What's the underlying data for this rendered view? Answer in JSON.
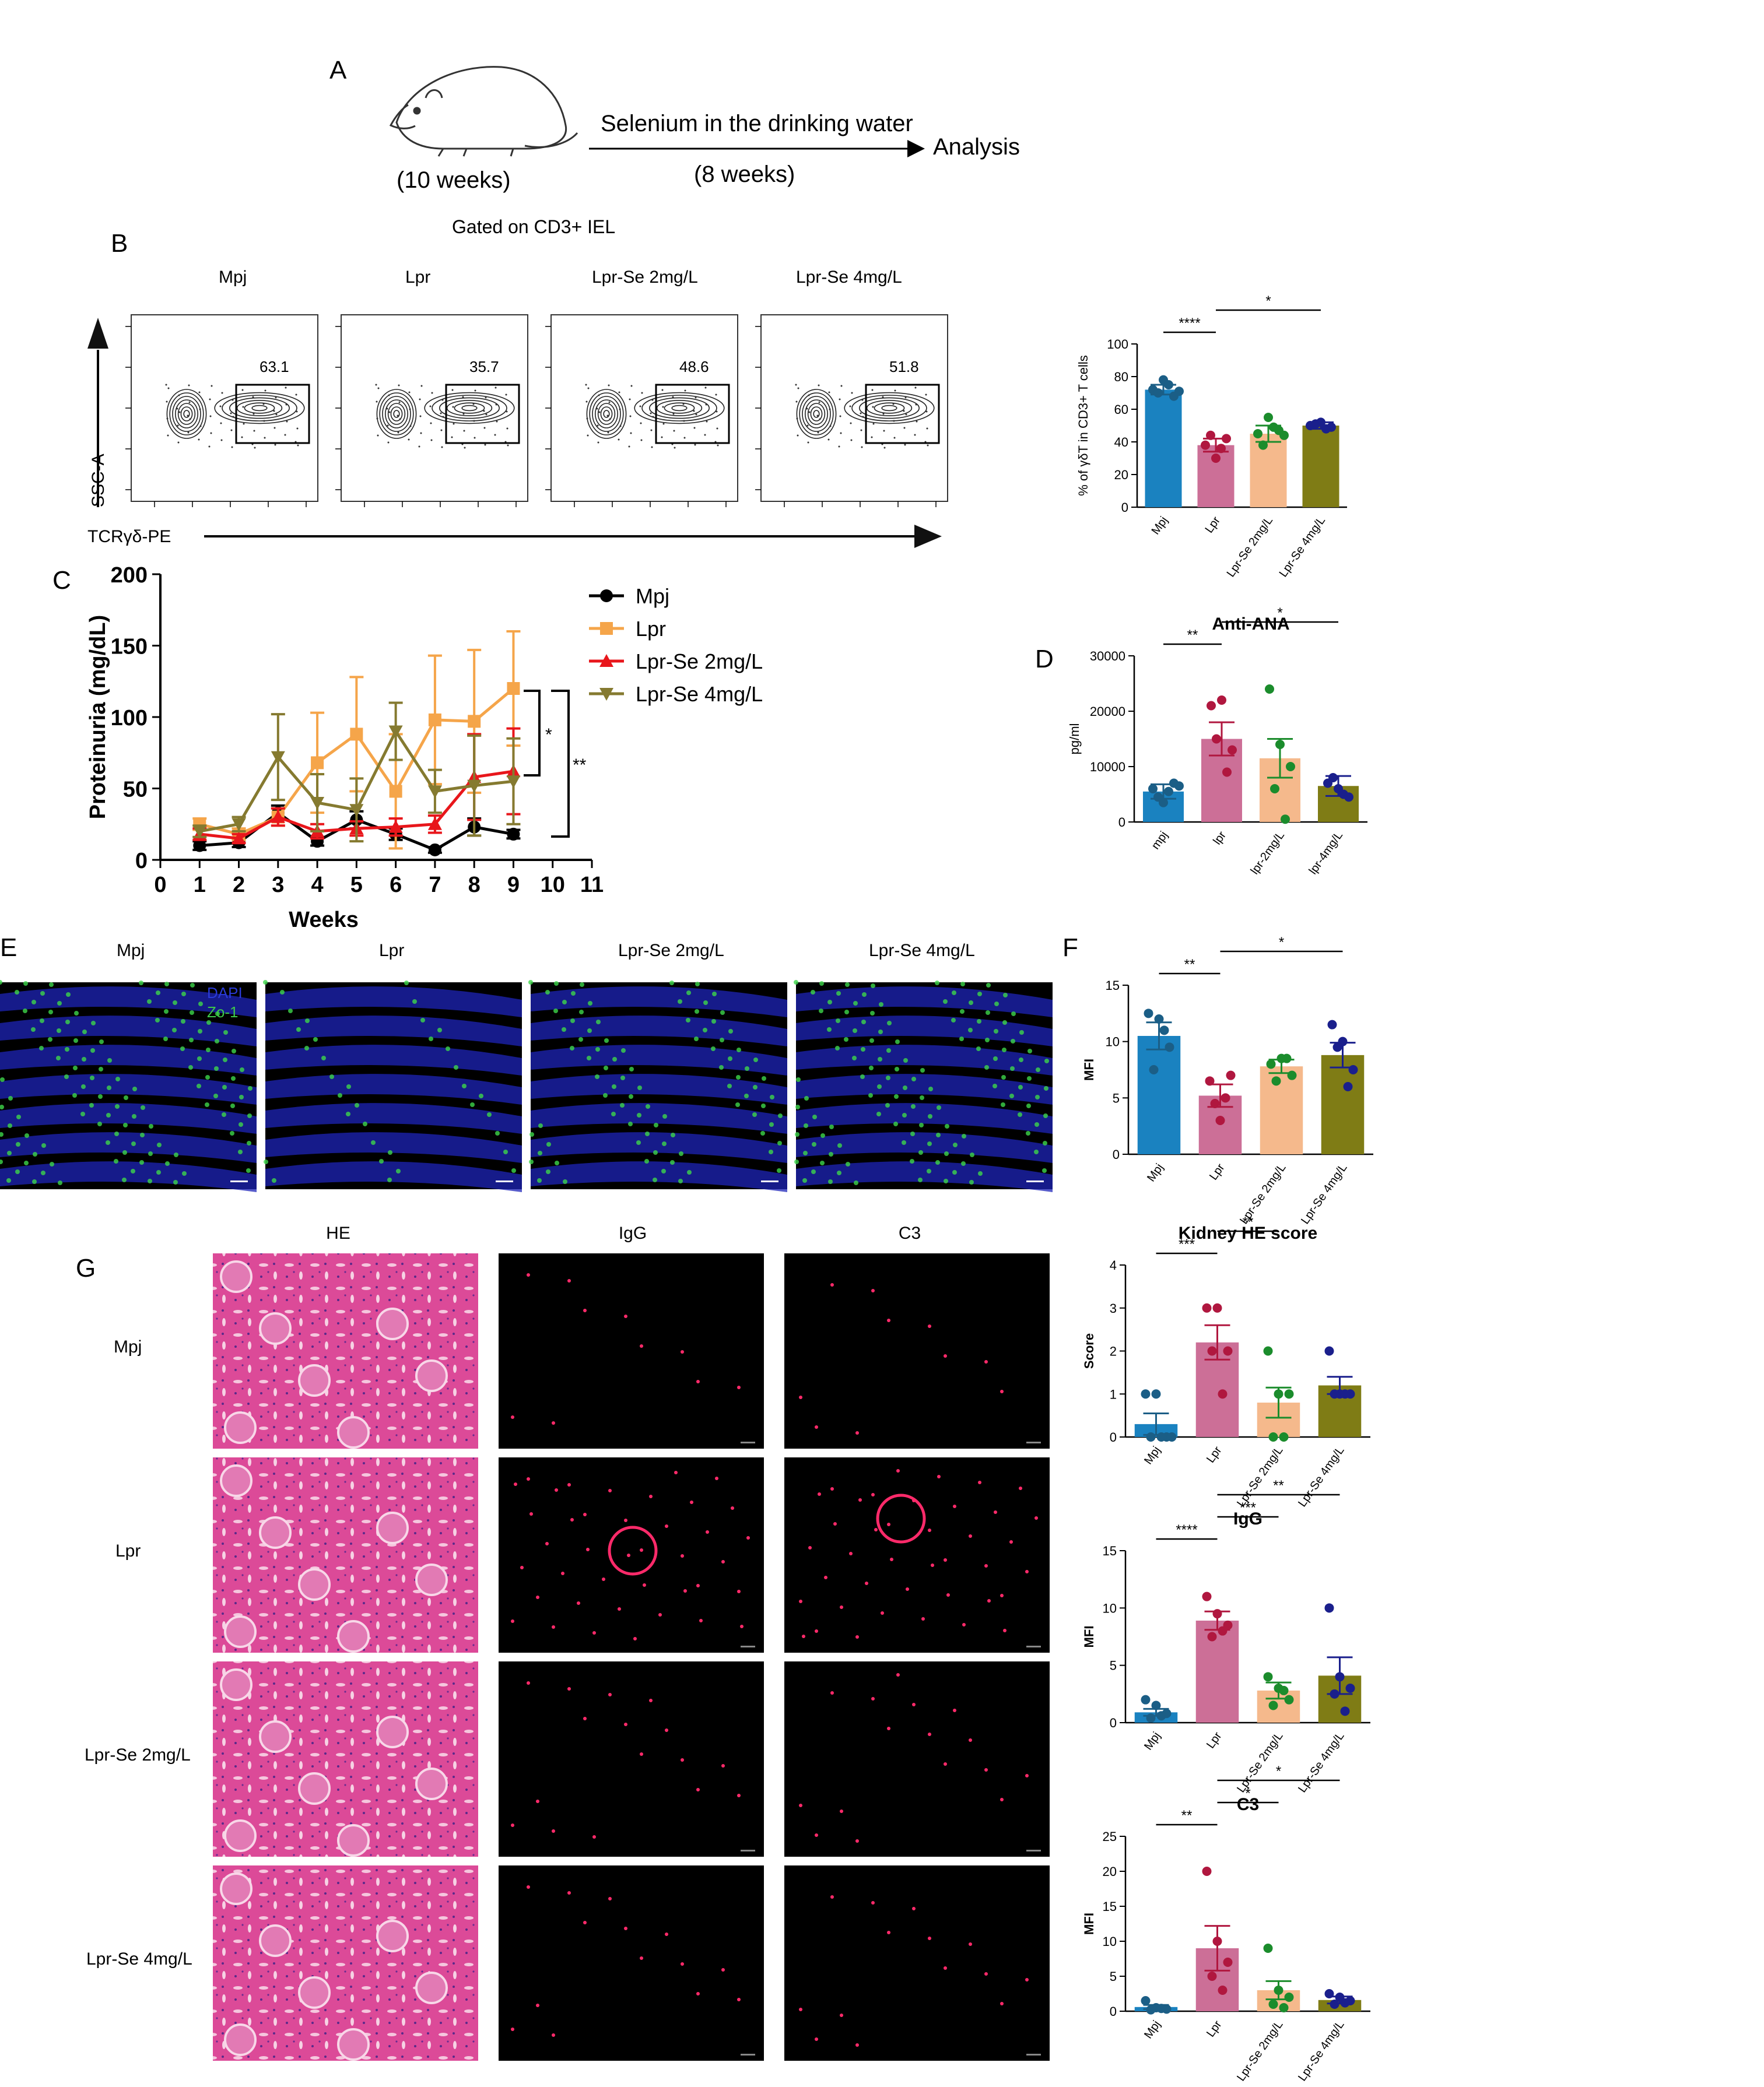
{
  "panel_letters": {
    "A": "A",
    "B": "B",
    "C": "C",
    "D": "D",
    "E": "E",
    "F": "F",
    "G": "G"
  },
  "panel_a": {
    "treatment": "Selenium in the drinking water",
    "duration": "(8 weeks)",
    "age": "(10 weeks)",
    "endpoint": "Analysis"
  },
  "panel_b": {
    "gate_title": "Gated on CD3+ IEL",
    "y_axis_label": "SSC-A",
    "x_axis_label": "TCRγδ-PE",
    "plots": [
      {
        "group": "Mpj",
        "gate_value": "63.1"
      },
      {
        "group": "Lpr",
        "gate_value": "35.7"
      },
      {
        "group": "Lpr-Se 2mg/L",
        "gate_value": "48.6"
      },
      {
        "group": "Lpr-Se 4mg/L",
        "gate_value": "51.8"
      }
    ]
  },
  "groups_cap": [
    "Mpj",
    "Lpr",
    "Lpr-Se 2mg/L",
    "Lpr-Se 4mg/L"
  ],
  "groups_lower": [
    "mpj",
    "lpr",
    "lpr-2mg/L",
    "lpr-4mg/L"
  ],
  "colors": {
    "mpj": "#1a82c0",
    "lpr": "#cc6f97",
    "se2": "#f5b98c",
    "se4": "#7f7c15",
    "dot_mpj": "#1b5e86",
    "dot_lpr": "#b0173f",
    "dot_se2": "#1b8c2c",
    "dot_se4": "#1a1f8c"
  },
  "chart_data": [
    {
      "type": "bar",
      "id": "gd_t",
      "ylabel": "% of γδT in CD3+ T cells",
      "ylim": [
        0,
        100
      ],
      "ticks": [
        0,
        20,
        40,
        60,
        80,
        100
      ],
      "categories": [
        "Mpj",
        "Lpr",
        "Lpr-Se 2mg/L",
        "Lpr-Se 4mg/L"
      ],
      "values": [
        72,
        38,
        45,
        50
      ],
      "sem": [
        3,
        4,
        5,
        2
      ],
      "points": [
        [
          72,
          78,
          68,
          70,
          75,
          71
        ],
        [
          38,
          30,
          42,
          44,
          36
        ],
        [
          45,
          55,
          47,
          38,
          49,
          44
        ],
        [
          50,
          52,
          49,
          51,
          48
        ]
      ],
      "significance": [
        {
          "from": 0,
          "to": 1,
          "label": "****"
        },
        {
          "from": 1,
          "to": 3,
          "label": "*"
        }
      ]
    },
    {
      "type": "line",
      "id": "proteinuria",
      "xlabel": "Weeks",
      "ylabel": "Proteinuria (mg/dL)",
      "x_ticks": [
        0,
        1,
        2,
        3,
        4,
        5,
        6,
        7,
        8,
        9,
        10,
        11
      ],
      "ylim": [
        0,
        200
      ],
      "y_ticks": [
        0,
        50,
        100,
        150,
        200
      ],
      "series": [
        {
          "name": "Mpj",
          "x": [
            1,
            2,
            3,
            4,
            5,
            6,
            7,
            8,
            9
          ],
          "y": [
            10,
            12,
            33,
            13,
            28,
            18,
            7,
            23,
            18
          ],
          "err": [
            3,
            3,
            5,
            3,
            6,
            4,
            2,
            6,
            3
          ]
        },
        {
          "name": "Lpr",
          "x": [
            1,
            2,
            3,
            4,
            5,
            6,
            7,
            8,
            9
          ],
          "y": [
            25,
            18,
            30,
            68,
            88,
            48,
            98,
            97,
            120
          ],
          "err": [
            4,
            4,
            6,
            35,
            40,
            40,
            45,
            50,
            40
          ]
        },
        {
          "name": "Lpr-Se 2mg/L",
          "x": [
            1,
            2,
            3,
            4,
            5,
            6,
            7,
            8,
            9
          ],
          "y": [
            18,
            15,
            30,
            20,
            22,
            23,
            25,
            58,
            62
          ],
          "err": [
            4,
            3,
            6,
            5,
            5,
            6,
            6,
            30,
            30
          ]
        },
        {
          "name": "Lpr-Se 4mg/L",
          "x": [
            1,
            2,
            3,
            4,
            5,
            6,
            7,
            8,
            9
          ],
          "y": [
            20,
            25,
            72,
            40,
            35,
            90,
            48,
            52,
            55
          ],
          "err": [
            4,
            5,
            30,
            20,
            22,
            20,
            15,
            35,
            30
          ]
        }
      ],
      "significance": [
        {
          "label": "*"
        },
        {
          "label": "**"
        }
      ]
    },
    {
      "type": "bar",
      "id": "anti_ana",
      "title": "Anti-ANA",
      "ylabel": "pg/ml",
      "ylim": [
        0,
        30000
      ],
      "ticks": [
        0,
        10000,
        20000,
        30000
      ],
      "categories": [
        "mpj",
        "lpr",
        "lpr-2mg/L",
        "lpr-4mg/L"
      ],
      "values": [
        5500,
        15000,
        11500,
        6500
      ],
      "sem": [
        1300,
        3000,
        3500,
        1800
      ],
      "points": [
        [
          6000,
          3500,
          7000,
          4500,
          5500,
          6500
        ],
        [
          21000,
          22000,
          13000,
          15000,
          9000
        ],
        [
          24000,
          14000,
          10000,
          6000,
          500
        ],
        [
          7000,
          6000,
          4500,
          8000,
          5000
        ]
      ],
      "significance": [
        {
          "from": 0,
          "to": 1,
          "label": "**"
        },
        {
          "from": 1,
          "to": 3,
          "label": "*"
        }
      ]
    },
    {
      "type": "bar",
      "id": "zo1",
      "ylabel": "MFI",
      "ylim": [
        0,
        15
      ],
      "ticks": [
        0,
        5,
        10,
        15
      ],
      "categories": [
        "Mpj",
        "Lpr",
        "Lpr-Se 2mg/L",
        "Lpr-Se 4mg/L"
      ],
      "values": [
        10.5,
        5.2,
        7.8,
        8.8
      ],
      "sem": [
        1.2,
        1.0,
        0.6,
        1.1
      ],
      "points": [
        [
          12.5,
          12,
          9.5,
          7.5,
          11
        ],
        [
          6.5,
          3,
          7,
          4.5,
          5
        ],
        [
          8,
          8.5,
          7,
          6.5,
          8.5
        ],
        [
          11.5,
          10,
          7.5,
          9.5,
          6
        ]
      ],
      "significance": [
        {
          "from": 0,
          "to": 1,
          "label": "**"
        },
        {
          "from": 1,
          "to": 3,
          "label": "*"
        }
      ]
    },
    {
      "type": "bar",
      "id": "kidney_he",
      "title": "Kidney HE score",
      "ylabel": "Score",
      "ylim": [
        0,
        4
      ],
      "ticks": [
        0,
        1,
        2,
        3,
        4
      ],
      "categories": [
        "Mpj",
        "Lpr",
        "Lpr-Se 2mg/L",
        "Lpr-Se 4mg/L"
      ],
      "values": [
        0.3,
        2.2,
        0.8,
        1.2
      ],
      "sem": [
        0.25,
        0.4,
        0.35,
        0.2
      ],
      "points": [
        [
          1,
          1,
          0,
          0,
          0,
          0
        ],
        [
          3,
          3,
          2,
          2,
          1
        ],
        [
          2,
          1,
          1,
          0,
          0
        ],
        [
          2,
          1,
          1,
          1,
          1
        ]
      ],
      "significance": [
        {
          "from": 0,
          "to": 1,
          "label": "***"
        },
        {
          "from": 1,
          "to": 2,
          "label": "**"
        }
      ]
    },
    {
      "type": "bar",
      "id": "igg",
      "title": "IgG",
      "ylabel": "MFI",
      "ylim": [
        0,
        15
      ],
      "ticks": [
        0,
        5,
        10,
        15
      ],
      "categories": [
        "Mpj",
        "Lpr",
        "Lpr-Se 2mg/L",
        "Lpr-Se 4mg/L"
      ],
      "values": [
        0.9,
        8.9,
        2.8,
        4.1
      ],
      "sem": [
        0.3,
        0.8,
        0.7,
        1.6
      ],
      "points": [
        [
          2,
          1.5,
          0.8,
          0.4,
          0.6
        ],
        [
          11,
          9.5,
          8.5,
          7.5,
          8
        ],
        [
          4,
          3,
          2,
          1.5,
          2.8
        ],
        [
          10,
          4,
          3,
          2.5,
          1
        ]
      ],
      "significance": [
        {
          "from": 0,
          "to": 1,
          "label": "****"
        },
        {
          "from": 1,
          "to": 2,
          "label": "***"
        },
        {
          "from": 1,
          "to": 3,
          "label": "**"
        }
      ]
    },
    {
      "type": "bar",
      "id": "c3",
      "title": "C3",
      "ylabel": "MFI",
      "ylim": [
        0,
        25
      ],
      "ticks": [
        0,
        5,
        10,
        15,
        20,
        25
      ],
      "categories": [
        "Mpj",
        "Lpr",
        "Lpr-Se 2mg/L",
        "Lpr-Se 4mg/L"
      ],
      "values": [
        0.6,
        9,
        3,
        1.6
      ],
      "sem": [
        0.3,
        3.2,
        1.3,
        0.5
      ],
      "points": [
        [
          1.5,
          0.5,
          0.3,
          0.2,
          0.4
        ],
        [
          20,
          10,
          7,
          5,
          3
        ],
        [
          9,
          3,
          2,
          1,
          0.5
        ],
        [
          2.5,
          2,
          1.5,
          1,
          1.2
        ]
      ],
      "significance": [
        {
          "from": 0,
          "to": 1,
          "label": "**"
        },
        {
          "from": 1,
          "to": 2,
          "label": "*"
        },
        {
          "from": 1,
          "to": 3,
          "label": "*"
        }
      ]
    }
  ],
  "panel_e": {
    "groups": [
      "Mpj",
      "Lpr",
      "Lpr-Se 2mg/L",
      "Lpr-Se 4mg/L"
    ],
    "dapi": "DAPI",
    "zo1": "Zo-1"
  },
  "panel_g": {
    "columns": [
      "HE",
      "IgG",
      "C3"
    ],
    "rows": [
      "Mpj",
      "Lpr",
      "Lpr-Se 2mg/L",
      "Lpr-Se 4mg/L"
    ]
  }
}
